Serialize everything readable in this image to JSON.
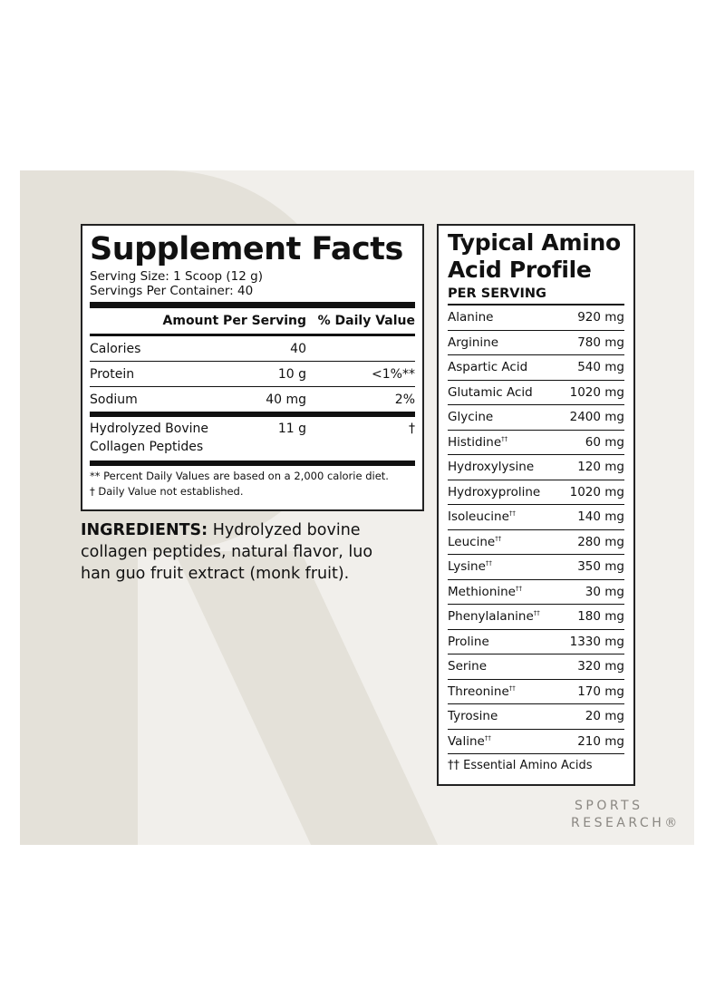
{
  "supplement_facts": {
    "title": "Supplement Facts",
    "serving_size": "Serving Size: 1 Scoop (12 g)",
    "servings_per_container": "Servings Per Container: 40",
    "header_amount": "Amount Per Serving",
    "header_dv": "% Daily Value",
    "rows": [
      {
        "name": "Calories",
        "amount": "40",
        "dv": ""
      },
      {
        "name": "Protein",
        "amount": "10 g",
        "dv": "<1%**"
      },
      {
        "name": "Sodium",
        "amount": "40 mg",
        "dv": "2%"
      },
      {
        "name": "Hydrolyzed Bovine Collagen Peptides",
        "amount": "11 g",
        "dv": "†"
      }
    ],
    "footnote1": "** Percent Daily Values are based on a 2,000 calorie diet.",
    "footnote2": "† Daily Value not established."
  },
  "ingredients": {
    "label": "INGREDIENTS:",
    "text": " Hydrolyzed bovine collagen peptides, natural flavor, luo han guo fruit extract (monk fruit)."
  },
  "amino": {
    "title_line1": "Typical Amino",
    "title_line2": "Acid Profile",
    "subtitle": "PER SERVING",
    "rows": [
      {
        "name": "Alanine",
        "mark": "",
        "amount": "920 mg"
      },
      {
        "name": "Arginine",
        "mark": "",
        "amount": "780 mg"
      },
      {
        "name": "Aspartic Acid",
        "mark": "",
        "amount": "540 mg"
      },
      {
        "name": "Glutamic Acid",
        "mark": "",
        "amount": "1020 mg"
      },
      {
        "name": "Glycine",
        "mark": "",
        "amount": "2400 mg"
      },
      {
        "name": "Histidine",
        "mark": "††",
        "amount": "60 mg"
      },
      {
        "name": "Hydroxylysine",
        "mark": "",
        "amount": "120 mg"
      },
      {
        "name": "Hydroxyproline",
        "mark": "",
        "amount": "1020 mg"
      },
      {
        "name": "Isoleucine",
        "mark": "††",
        "amount": "140 mg"
      },
      {
        "name": "Leucine",
        "mark": "††",
        "amount": "280 mg"
      },
      {
        "name": "Lysine",
        "mark": "††",
        "amount": "350 mg"
      },
      {
        "name": "Methionine",
        "mark": "††",
        "amount": "30 mg"
      },
      {
        "name": "Phenylalanine",
        "mark": "††",
        "amount": "180 mg"
      },
      {
        "name": "Proline",
        "mark": "",
        "amount": "1330 mg"
      },
      {
        "name": "Serine",
        "mark": "",
        "amount": "320 mg"
      },
      {
        "name": "Threonine",
        "mark": "††",
        "amount": "170 mg"
      },
      {
        "name": "Tyrosine",
        "mark": "",
        "amount": "20 mg"
      },
      {
        "name": "Valine",
        "mark": "††",
        "amount": "210 mg"
      }
    ],
    "footnote": "†† Essential Amino Acids"
  },
  "logo": {
    "line1": "SPORTS",
    "line2": "RESEARCH®"
  },
  "colors": {
    "background": "#f1efeb",
    "watermark": "#e4e1d9",
    "text": "#111111",
    "logo": "#8a8782"
  }
}
